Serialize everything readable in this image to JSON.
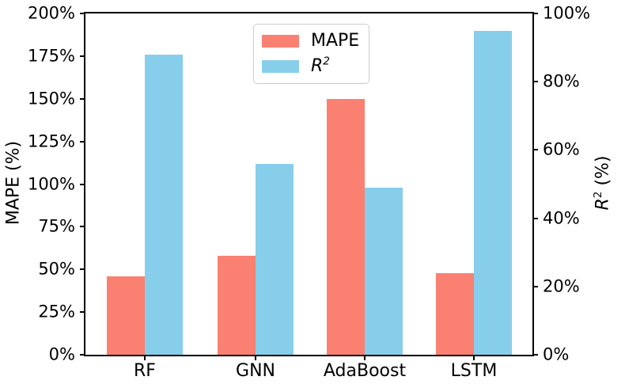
{
  "chart_data": {
    "type": "bar",
    "title": "",
    "categories": [
      "RF",
      "GNN",
      "AdaBoost",
      "LSTM"
    ],
    "series": [
      {
        "name": "MAPE",
        "axis": "left",
        "color": "#fa8072",
        "values": [
          46,
          58,
          150,
          48
        ]
      },
      {
        "name": "R2",
        "axis": "right",
        "color": "#87ceeb",
        "values": [
          88,
          56,
          49,
          95
        ]
      }
    ],
    "left_axis": {
      "label": "MAPE (%)",
      "range": [
        0,
        200
      ],
      "ticks": [
        {
          "value": 0,
          "label": "0%"
        },
        {
          "value": 25,
          "label": "25%"
        },
        {
          "value": 50,
          "label": "50%"
        },
        {
          "value": 75,
          "label": "75%"
        },
        {
          "value": 100,
          "label": "100%"
        },
        {
          "value": 125,
          "label": "125%"
        },
        {
          "value": 150,
          "label": "150%"
        },
        {
          "value": 175,
          "label": "175%"
        },
        {
          "value": 200,
          "label": "200%"
        }
      ]
    },
    "right_axis": {
      "label_main": "R",
      "label_sup": "2",
      "label_rest": " (%)",
      "range": [
        0,
        100
      ],
      "ticks": [
        {
          "value": 0,
          "label": "0%"
        },
        {
          "value": 20,
          "label": "20%"
        },
        {
          "value": 40,
          "label": "40%"
        },
        {
          "value": 60,
          "label": "60%"
        },
        {
          "value": 80,
          "label": "80%"
        },
        {
          "value": 100,
          "label": "100%"
        }
      ]
    },
    "legend": {
      "position": "upper center",
      "entries": [
        {
          "label": "MAPE",
          "sup": "",
          "color": "#fa8072",
          "italic": false
        },
        {
          "label": "R",
          "sup": "2",
          "color": "#87ceeb",
          "italic": true
        }
      ]
    },
    "grid": false,
    "spine_color": "#000000",
    "background": "#ffffff"
  }
}
